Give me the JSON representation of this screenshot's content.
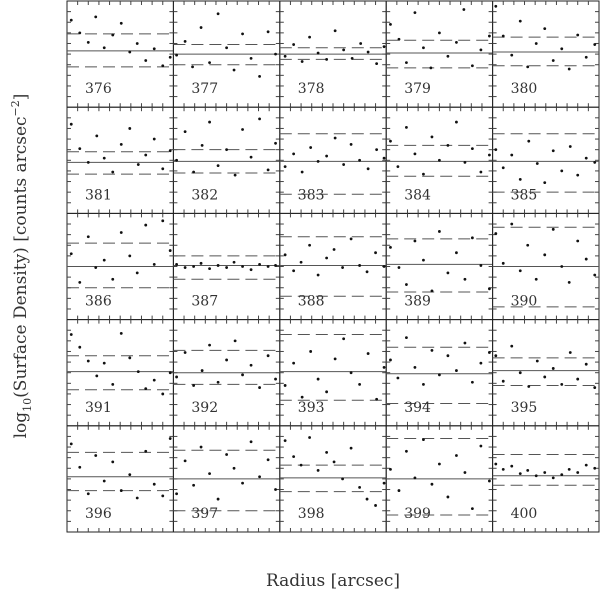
{
  "chart_data": {
    "type": "scatter-grid",
    "xlabel": "Radius [arcsec]",
    "ylabel": {
      "main": "log",
      "sub": "10",
      "rest": "(Surface Density) [counts arcsec",
      "sup": "−2",
      "end": "]"
    },
    "xlim": [
      0,
      10
    ],
    "ylim": [
      0,
      10
    ],
    "xticks": [
      1,
      2,
      3,
      4,
      5,
      6,
      7,
      8,
      9
    ],
    "yticks": [
      1,
      2,
      3,
      4,
      5,
      6,
      7,
      8,
      9
    ],
    "panels": [
      {
        "label": "376",
        "x": [
          0.4,
          1.2,
          2.0,
          2.7,
          3.5,
          4.3,
          5.1,
          5.9,
          6.6,
          7.4,
          8.2,
          9.0,
          9.7
        ],
        "y": [
          8.2,
          7.0,
          6.1,
          8.5,
          5.6,
          6.8,
          7.9,
          5.2,
          6.0,
          4.4,
          5.5,
          3.9,
          4.7
        ],
        "hline": 5.3,
        "dashed": [
          3.8,
          6.9
        ]
      },
      {
        "label": "377",
        "x": [
          0.3,
          1.1,
          1.8,
          2.6,
          3.4,
          4.2,
          5.0,
          5.7,
          6.5,
          7.3,
          8.1,
          8.9,
          9.6
        ],
        "y": [
          4.9,
          6.2,
          3.8,
          7.5,
          4.2,
          8.8,
          5.6,
          3.5,
          6.9,
          4.6,
          2.9,
          7.1,
          5.0
        ],
        "hline": 5.0,
        "dashed": [
          4.0,
          5.9
        ]
      },
      {
        "label": "378",
        "x": [
          0.5,
          1.3,
          2.1,
          2.8,
          3.6,
          4.4,
          5.2,
          6.0,
          6.8,
          7.6,
          8.3,
          9.1,
          9.8
        ],
        "y": [
          4.8,
          5.9,
          4.3,
          6.6,
          5.1,
          4.5,
          7.2,
          5.4,
          4.6,
          6.0,
          5.2,
          4.1,
          5.7
        ],
        "hline": 5.0,
        "dashed": [
          4.5,
          5.6
        ]
      },
      {
        "label": "379",
        "x": [
          0.4,
          1.2,
          1.9,
          2.7,
          3.5,
          4.2,
          5.0,
          5.8,
          6.6,
          7.3,
          8.1,
          8.9,
          9.7
        ],
        "y": [
          7.8,
          6.4,
          4.2,
          8.9,
          5.6,
          3.7,
          7.0,
          4.8,
          6.1,
          9.2,
          3.9,
          5.4,
          6.7
        ],
        "hline": 5.1,
        "dashed": [
          3.7,
          6.3
        ]
      },
      {
        "label": "380",
        "x": [
          0.3,
          1.0,
          1.8,
          2.6,
          3.3,
          4.1,
          4.9,
          5.7,
          6.5,
          7.2,
          8.0,
          8.8,
          9.6
        ],
        "y": [
          9.5,
          6.7,
          4.9,
          8.1,
          3.8,
          6.0,
          7.4,
          4.4,
          5.5,
          3.6,
          6.8,
          4.7,
          5.9
        ],
        "hline": 5.2,
        "dashed": [
          3.9,
          6.6
        ]
      },
      {
        "label": "381",
        "x": [
          0.4,
          1.2,
          2.0,
          2.8,
          3.5,
          4.3,
          5.1,
          5.9,
          6.7,
          7.4,
          8.2,
          9.0,
          9.7
        ],
        "y": [
          8.4,
          6.1,
          4.8,
          7.3,
          5.2,
          3.9,
          6.5,
          8.0,
          4.6,
          5.5,
          7.0,
          4.2,
          5.9
        ],
        "hline": 4.8,
        "dashed": [
          3.7,
          5.8
        ]
      },
      {
        "label": "382",
        "x": [
          0.3,
          1.1,
          1.9,
          2.7,
          3.4,
          4.2,
          5.0,
          5.8,
          6.5,
          7.3,
          8.1,
          8.9,
          9.6
        ],
        "y": [
          5.0,
          7.7,
          3.9,
          6.4,
          8.6,
          4.5,
          6.0,
          3.6,
          7.9,
          5.3,
          8.9,
          4.1,
          6.6
        ],
        "hline": 4.9,
        "dashed": [
          3.8,
          6.0
        ]
      },
      {
        "label": "383",
        "x": [
          0.5,
          1.3,
          2.1,
          2.9,
          3.6,
          4.4,
          5.2,
          6.0,
          6.7,
          7.5,
          8.3,
          9.1,
          9.8
        ],
        "y": [
          4.4,
          5.6,
          3.9,
          6.2,
          4.9,
          5.4,
          7.1,
          4.6,
          6.5,
          5.0,
          4.2,
          6.0,
          5.2
        ],
        "hline": 4.9,
        "dashed": [
          1.8,
          7.5
        ]
      },
      {
        "label": "384",
        "x": [
          0.4,
          1.1,
          1.9,
          2.7,
          3.5,
          4.3,
          5.0,
          5.8,
          6.6,
          7.4,
          8.1,
          8.9,
          9.7
        ],
        "y": [
          6.8,
          4.4,
          8.1,
          5.6,
          3.7,
          7.2,
          5.0,
          6.4,
          8.6,
          4.8,
          6.1,
          3.9,
          5.5
        ],
        "hline": 4.9,
        "dashed": [
          3.5,
          6.4
        ]
      },
      {
        "label": "385",
        "x": [
          0.3,
          1.0,
          1.8,
          2.6,
          3.4,
          4.2,
          4.9,
          5.7,
          6.5,
          7.3,
          8.0,
          8.8,
          9.6
        ],
        "y": [
          6.0,
          4.3,
          5.5,
          3.2,
          6.8,
          4.7,
          2.9,
          5.9,
          4.0,
          6.3,
          3.6,
          5.2,
          4.8
        ],
        "hline": 4.9,
        "dashed": [
          2.0,
          7.5
        ]
      },
      {
        "label": "386",
        "x": [
          0.4,
          1.2,
          2.0,
          2.7,
          3.5,
          4.3,
          5.1,
          5.9,
          6.6,
          7.4,
          8.2,
          9.0,
          9.7
        ],
        "y": [
          6.2,
          3.5,
          7.8,
          4.9,
          5.6,
          3.8,
          8.2,
          6.0,
          4.4,
          8.9,
          5.2,
          9.3,
          6.5
        ],
        "hline": 5.0,
        "dashed": [
          3.0,
          7.2
        ]
      },
      {
        "label": "387",
        "x": [
          0.3,
          1.1,
          1.9,
          2.6,
          3.4,
          4.2,
          5.0,
          5.7,
          6.5,
          7.3,
          8.1,
          8.9,
          9.6
        ],
        "y": [
          5.2,
          4.9,
          5.0,
          5.3,
          4.8,
          5.1,
          4.9,
          5.4,
          5.0,
          4.7,
          5.2,
          5.0,
          5.1
        ],
        "hline": 5.1,
        "dashed": [
          3.8,
          6.0
        ]
      },
      {
        "label": "388",
        "x": [
          0.5,
          1.3,
          2.0,
          2.8,
          3.6,
          4.4,
          5.1,
          5.9,
          6.7,
          7.5,
          8.2,
          9.0,
          9.8
        ],
        "y": [
          6.1,
          4.6,
          5.4,
          7.0,
          4.2,
          5.8,
          6.6,
          4.9,
          7.6,
          5.1,
          4.5,
          6.3,
          5.0
        ],
        "hline": 5.1,
        "dashed": [
          2.2,
          7.8
        ]
      },
      {
        "label": "389",
        "x": [
          0.4,
          1.2,
          1.9,
          2.7,
          3.5,
          4.3,
          5.0,
          5.8,
          6.6,
          7.4,
          8.1,
          8.9,
          9.7
        ],
        "y": [
          6.8,
          4.9,
          3.3,
          7.4,
          5.6,
          2.7,
          8.3,
          4.4,
          6.3,
          3.8,
          7.7,
          5.1,
          2.9
        ],
        "hline": 5.2,
        "dashed": [
          2.6,
          7.6
        ]
      },
      {
        "label": "390",
        "x": [
          0.3,
          1.0,
          1.8,
          2.6,
          3.3,
          4.1,
          4.9,
          5.7,
          6.5,
          7.2,
          8.0,
          8.8,
          9.6
        ],
        "y": [
          8.1,
          5.3,
          9.0,
          4.6,
          7.0,
          3.8,
          6.1,
          8.5,
          5.0,
          3.5,
          7.4,
          5.7,
          4.2
        ],
        "hline": 5.0,
        "dashed": [
          1.2,
          8.7
        ]
      },
      {
        "label": "391",
        "x": [
          0.4,
          1.2,
          2.0,
          2.8,
          3.5,
          4.3,
          5.1,
          5.9,
          6.7,
          7.4,
          8.2,
          9.0,
          9.7
        ],
        "y": [
          8.6,
          7.4,
          6.1,
          4.7,
          5.9,
          3.9,
          8.7,
          6.4,
          5.1,
          3.5,
          4.3,
          3.0,
          5.0
        ],
        "hline": 5.1,
        "dashed": [
          3.4,
          6.6
        ]
      },
      {
        "label": "392",
        "x": [
          0.3,
          1.1,
          1.9,
          2.7,
          3.4,
          4.2,
          5.0,
          5.8,
          6.5,
          7.3,
          8.1,
          8.9,
          9.6
        ],
        "y": [
          4.6,
          6.9,
          3.8,
          5.2,
          7.6,
          4.1,
          6.2,
          8.0,
          4.8,
          5.7,
          3.6,
          6.6,
          4.4
        ],
        "hline": 5.0,
        "dashed": [
          3.9,
          7.1
        ]
      },
      {
        "label": "393",
        "x": [
          0.5,
          1.3,
          2.1,
          2.9,
          3.6,
          4.4,
          5.2,
          6.0,
          6.7,
          7.5,
          8.3,
          9.1,
          9.8
        ],
        "y": [
          3.8,
          5.9,
          2.7,
          7.0,
          4.4,
          3.2,
          6.3,
          8.2,
          5.0,
          3.9,
          6.8,
          2.5,
          5.5
        ],
        "hline": 5.1,
        "dashed": [
          2.4,
          8.6
        ]
      },
      {
        "label": "394",
        "x": [
          0.4,
          1.1,
          1.9,
          2.7,
          3.5,
          4.3,
          5.0,
          5.8,
          6.6,
          7.4,
          8.1,
          8.9,
          9.7
        ],
        "y": [
          6.2,
          4.5,
          8.3,
          5.5,
          3.9,
          7.1,
          4.8,
          6.6,
          5.2,
          7.8,
          4.1,
          5.9,
          6.9
        ],
        "hline": 4.9,
        "dashed": [
          2.1,
          7.4
        ]
      },
      {
        "label": "395",
        "x": [
          0.3,
          1.0,
          1.8,
          2.6,
          3.4,
          4.2,
          4.9,
          5.7,
          6.5,
          7.3,
          8.0,
          8.8,
          9.6
        ],
        "y": [
          6.6,
          4.2,
          7.5,
          5.0,
          3.7,
          6.1,
          4.6,
          5.4,
          3.9,
          6.9,
          4.4,
          5.8,
          3.6
        ],
        "hline": 5.2,
        "dashed": [
          3.8,
          6.4
        ]
      },
      {
        "label": "396",
        "x": [
          0.4,
          1.2,
          2.0,
          2.7,
          3.5,
          4.3,
          5.1,
          5.9,
          6.6,
          7.4,
          8.2,
          9.0,
          9.7
        ],
        "y": [
          8.3,
          6.1,
          3.6,
          7.2,
          4.8,
          6.6,
          3.9,
          5.4,
          3.2,
          7.6,
          4.5,
          3.4,
          8.8
        ],
        "hline": 5.2,
        "dashed": [
          3.9,
          7.5
        ]
      },
      {
        "label": "397",
        "x": [
          0.3,
          1.1,
          1.9,
          2.6,
          3.4,
          4.2,
          5.0,
          5.7,
          6.5,
          7.3,
          8.1,
          8.9,
          9.6
        ],
        "y": [
          3.6,
          6.7,
          4.4,
          8.0,
          5.5,
          3.1,
          7.3,
          6.0,
          4.6,
          8.5,
          5.2,
          6.8,
          4.0
        ],
        "hline": 5.0,
        "dashed": [
          2.0,
          7.7
        ]
      },
      {
        "label": "398",
        "x": [
          0.5,
          1.3,
          2.0,
          2.8,
          3.6,
          4.4,
          5.1,
          5.9,
          6.7,
          7.5,
          8.2,
          9.0,
          9.8
        ],
        "y": [
          8.6,
          7.1,
          6.3,
          8.9,
          5.8,
          7.5,
          6.6,
          5.0,
          7.9,
          4.2,
          3.1,
          2.5,
          4.6
        ],
        "hline": 5.1,
        "dashed": [
          3.8,
          6.3
        ]
      },
      {
        "label": "399",
        "x": [
          0.4,
          1.2,
          1.9,
          2.7,
          3.5,
          4.3,
          5.0,
          5.8,
          6.6,
          7.4,
          8.1,
          8.9,
          9.7
        ],
        "y": [
          5.9,
          3.9,
          7.6,
          5.1,
          8.7,
          4.5,
          6.4,
          3.3,
          7.2,
          5.6,
          2.2,
          8.1,
          4.8
        ],
        "hline": 5.0,
        "dashed": [
          1.6,
          8.8
        ]
      },
      {
        "label": "400",
        "x": [
          0.3,
          1.0,
          1.8,
          2.6,
          3.3,
          4.1,
          4.9,
          5.7,
          6.5,
          7.2,
          8.0,
          8.8,
          9.6
        ],
        "y": [
          6.4,
          5.9,
          6.2,
          5.5,
          5.8,
          5.3,
          5.6,
          5.1,
          5.4,
          5.9,
          5.6,
          6.3,
          6.0
        ],
        "hline": 5.3,
        "dashed": [
          4.4,
          7.3
        ]
      }
    ]
  }
}
